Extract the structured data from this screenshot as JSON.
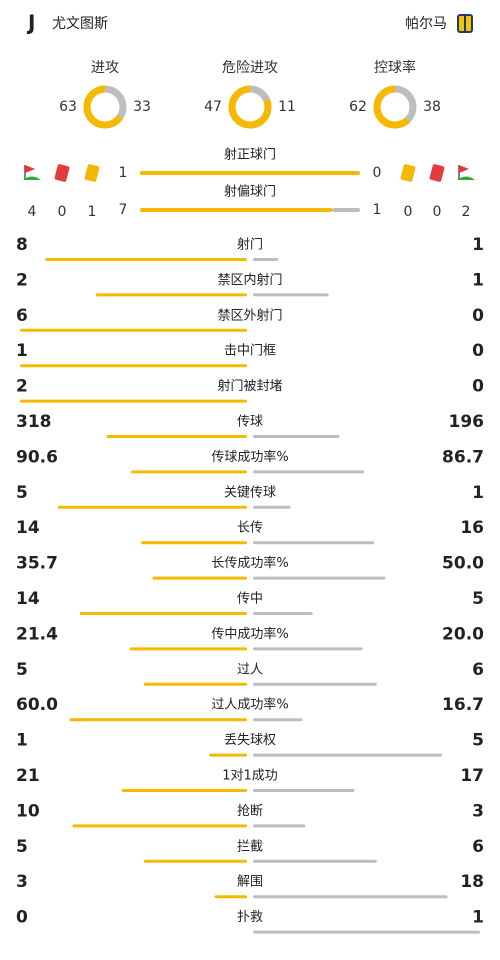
{
  "header": {
    "home": "尤文图斯",
    "away": "帕尔马"
  },
  "donuts": [
    {
      "label": "进攻",
      "home": 63,
      "away": 33
    },
    {
      "label": "危险进攻",
      "home": 47,
      "away": 11
    },
    {
      "label": "控球率",
      "home": 62,
      "away": 38
    }
  ],
  "shots": [
    {
      "label": "射正球门",
      "home": 1,
      "away": 0
    },
    {
      "label": "射偏球门",
      "home": 7,
      "away": 1
    }
  ],
  "cards": {
    "home": {
      "corners": 4,
      "red": 0,
      "yellow": 1
    },
    "away": {
      "yellow": 0,
      "red": 0,
      "corners": 2
    }
  },
  "stats": [
    {
      "label": "射门",
      "home": 8,
      "away": 1
    },
    {
      "label": "禁区内射门",
      "home": 2,
      "away": 1
    },
    {
      "label": "禁区外射门",
      "home": 6,
      "away": 0
    },
    {
      "label": "击中门框",
      "home": 1,
      "away": 0
    },
    {
      "label": "射门被封堵",
      "home": 2,
      "away": 0
    },
    {
      "label": "传球",
      "home": 318,
      "away": 196
    },
    {
      "label": "传球成功率%",
      "home": 90.6,
      "away": 86.7
    },
    {
      "label": "关键传球",
      "home": 5,
      "away": 1
    },
    {
      "label": "长传",
      "home": 14,
      "away": 16
    },
    {
      "label": "长传成功率%",
      "home": 35.7,
      "away": {
        "value": 50,
        "label": "50.0"
      }
    },
    {
      "label": "传中",
      "home": 14,
      "away": 5
    },
    {
      "label": "传中成功率%",
      "home": 21.4,
      "away": {
        "value": 20,
        "label": "20.0"
      }
    },
    {
      "label": "过人",
      "home": 5,
      "away": 6
    },
    {
      "label": "过人成功率%",
      "home": {
        "value": 60,
        "label": "60.0"
      },
      "away": 16.7
    },
    {
      "label": "丢失球权",
      "home": 1,
      "away": 5
    },
    {
      "label": "1对1成功",
      "home": 21,
      "away": 17
    },
    {
      "label": "抢断",
      "home": 10,
      "away": 3
    },
    {
      "label": "拦截",
      "home": 5,
      "away": 6
    },
    {
      "label": "解围",
      "home": 3,
      "away": 18
    },
    {
      "label": "扑救",
      "home": 0,
      "away": 1
    }
  ]
}
